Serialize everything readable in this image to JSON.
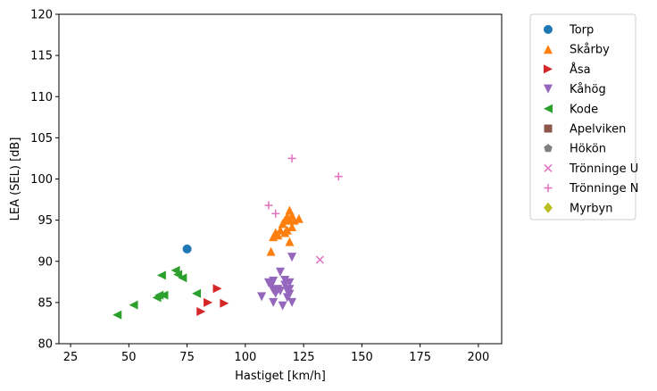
{
  "chart_data": {
    "type": "scatter",
    "xlabel": "Hastiget [km/h]",
    "ylabel": "LEA (SEL) [dB]",
    "xlim": [
      20,
      210
    ],
    "ylim": [
      80,
      120
    ],
    "xticks": [
      25,
      50,
      75,
      100,
      125,
      150,
      175,
      200
    ],
    "yticks": [
      80,
      85,
      90,
      95,
      100,
      105,
      110,
      115,
      120
    ],
    "grid": false,
    "legend_position": "outside-right",
    "series": [
      {
        "name": "Torp",
        "marker": "circle",
        "color": "#1f77b4",
        "points": [
          [
            75,
            91.5
          ]
        ]
      },
      {
        "name": "Skårby",
        "marker": "triangle-up",
        "color": "#ff7f0e",
        "points": [
          [
            111,
            91.2
          ],
          [
            112,
            93.0
          ],
          [
            113,
            93.5
          ],
          [
            114,
            93.2
          ],
          [
            115,
            93.8
          ],
          [
            116,
            94.6
          ],
          [
            117,
            95.0
          ],
          [
            117,
            93.5
          ],
          [
            118,
            95.4
          ],
          [
            118,
            93.8
          ],
          [
            119,
            96.2
          ],
          [
            119,
            95.0
          ],
          [
            120,
            95.6
          ],
          [
            120,
            94.2
          ],
          [
            119,
            92.4
          ],
          [
            123,
            95.2
          ],
          [
            121,
            95.0
          ]
        ]
      },
      {
        "name": "Åsa",
        "marker": "triangle-right",
        "color": "#d62728",
        "points": [
          [
            81,
            83.9
          ],
          [
            84,
            85.0
          ],
          [
            88,
            86.7
          ],
          [
            91,
            84.9
          ]
        ]
      },
      {
        "name": "Kåhög",
        "marker": "triangle-down",
        "color": "#9467bd",
        "points": [
          [
            107,
            85.7
          ],
          [
            110,
            87.4
          ],
          [
            111,
            87.0
          ],
          [
            112,
            87.6
          ],
          [
            112,
            86.5
          ],
          [
            112,
            85.0
          ],
          [
            113,
            86.1
          ],
          [
            114,
            86.6
          ],
          [
            115,
            88.7
          ],
          [
            115,
            86.4
          ],
          [
            116,
            84.6
          ],
          [
            117,
            87.7
          ],
          [
            117,
            87.1
          ],
          [
            118,
            86.4
          ],
          [
            118,
            85.6
          ],
          [
            119,
            87.4
          ],
          [
            119,
            86.6
          ],
          [
            119,
            86.0
          ],
          [
            120,
            85.0
          ],
          [
            120,
            90.5
          ]
        ]
      },
      {
        "name": "Kode",
        "marker": "triangle-left",
        "color": "#2ca02c",
        "points": [
          [
            45,
            83.5
          ],
          [
            52,
            84.7
          ],
          [
            62,
            85.6
          ],
          [
            63,
            85.9
          ],
          [
            64,
            88.3
          ],
          [
            65,
            85.9
          ],
          [
            70,
            88.9
          ],
          [
            71,
            88.4
          ],
          [
            73,
            88.0
          ],
          [
            79,
            86.1
          ]
        ]
      },
      {
        "name": "Apelviken",
        "marker": "square",
        "color": "#8c564b",
        "points": []
      },
      {
        "name": "Hökön",
        "marker": "pentagon",
        "color": "#7f7f7f",
        "points": []
      },
      {
        "name": "Trönninge U",
        "marker": "x",
        "color": "#e377c2",
        "points": [
          [
            132,
            90.2
          ]
        ]
      },
      {
        "name": "Trönninge N",
        "marker": "plus",
        "color": "#e377c2",
        "points": [
          [
            110,
            96.8
          ],
          [
            113,
            95.8
          ],
          [
            120,
            102.5
          ],
          [
            140,
            100.3
          ]
        ]
      },
      {
        "name": "Myrbyn",
        "marker": "diamond",
        "color": "#bcbd22",
        "points": []
      }
    ]
  }
}
